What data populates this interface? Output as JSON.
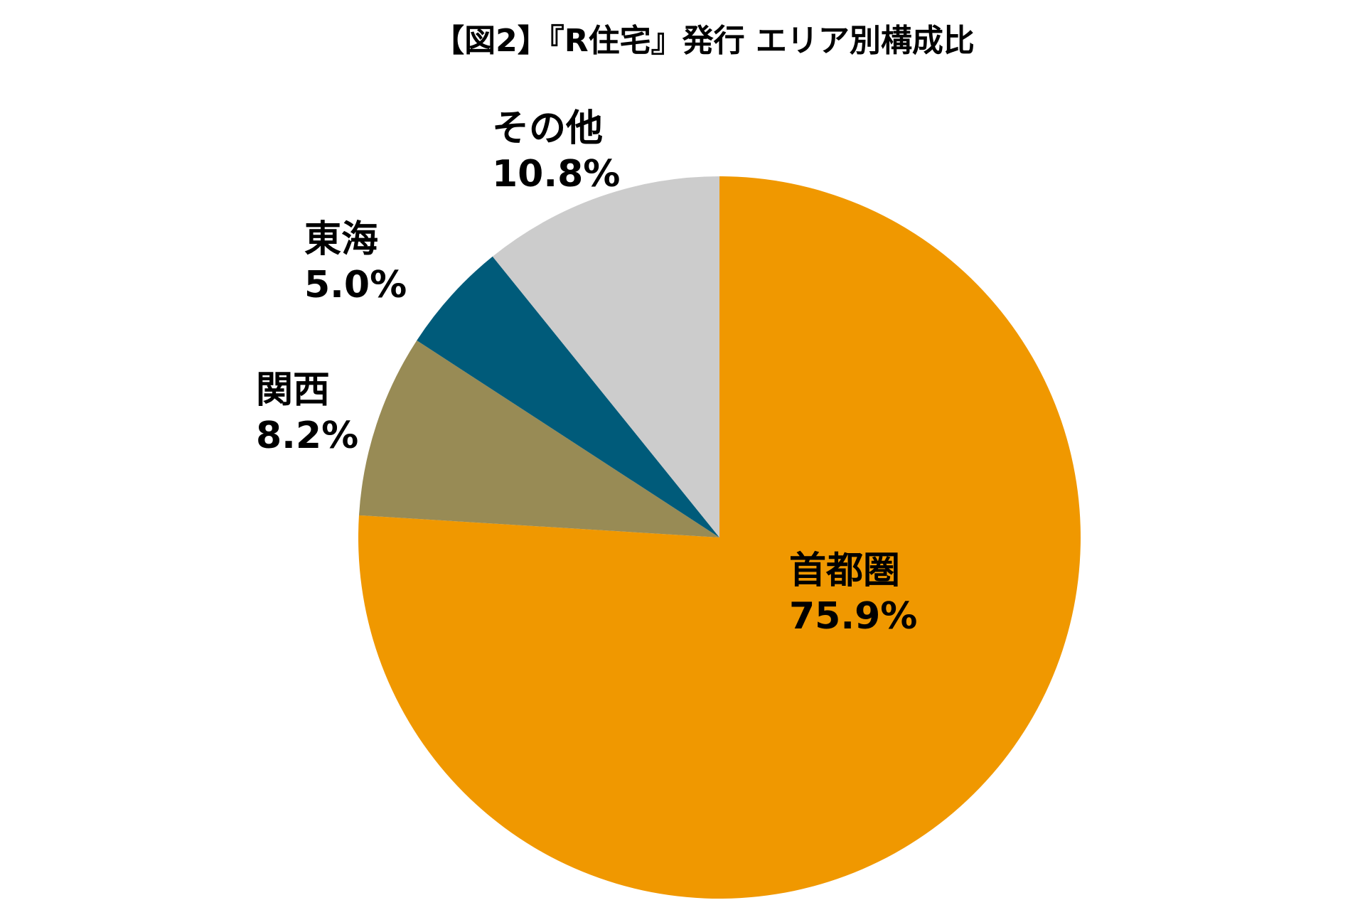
{
  "chart_data": {
    "type": "pie",
    "title": "【図2】『R住宅』発行 エリア別構成比",
    "start": "12 o'clock, clockwise",
    "slices": [
      {
        "name": "首都圏",
        "value": 75.9,
        "label": "75.9%",
        "color": "#F09800"
      },
      {
        "name": "関西",
        "value": 8.2,
        "label": "8.2%",
        "color": "#988B55"
      },
      {
        "name": "東海",
        "value": 5.0,
        "label": "5.0%",
        "color": "#005B7A"
      },
      {
        "name": "その他",
        "value": 10.8,
        "label": "10.8%",
        "color": "#CCCCCC"
      }
    ]
  }
}
